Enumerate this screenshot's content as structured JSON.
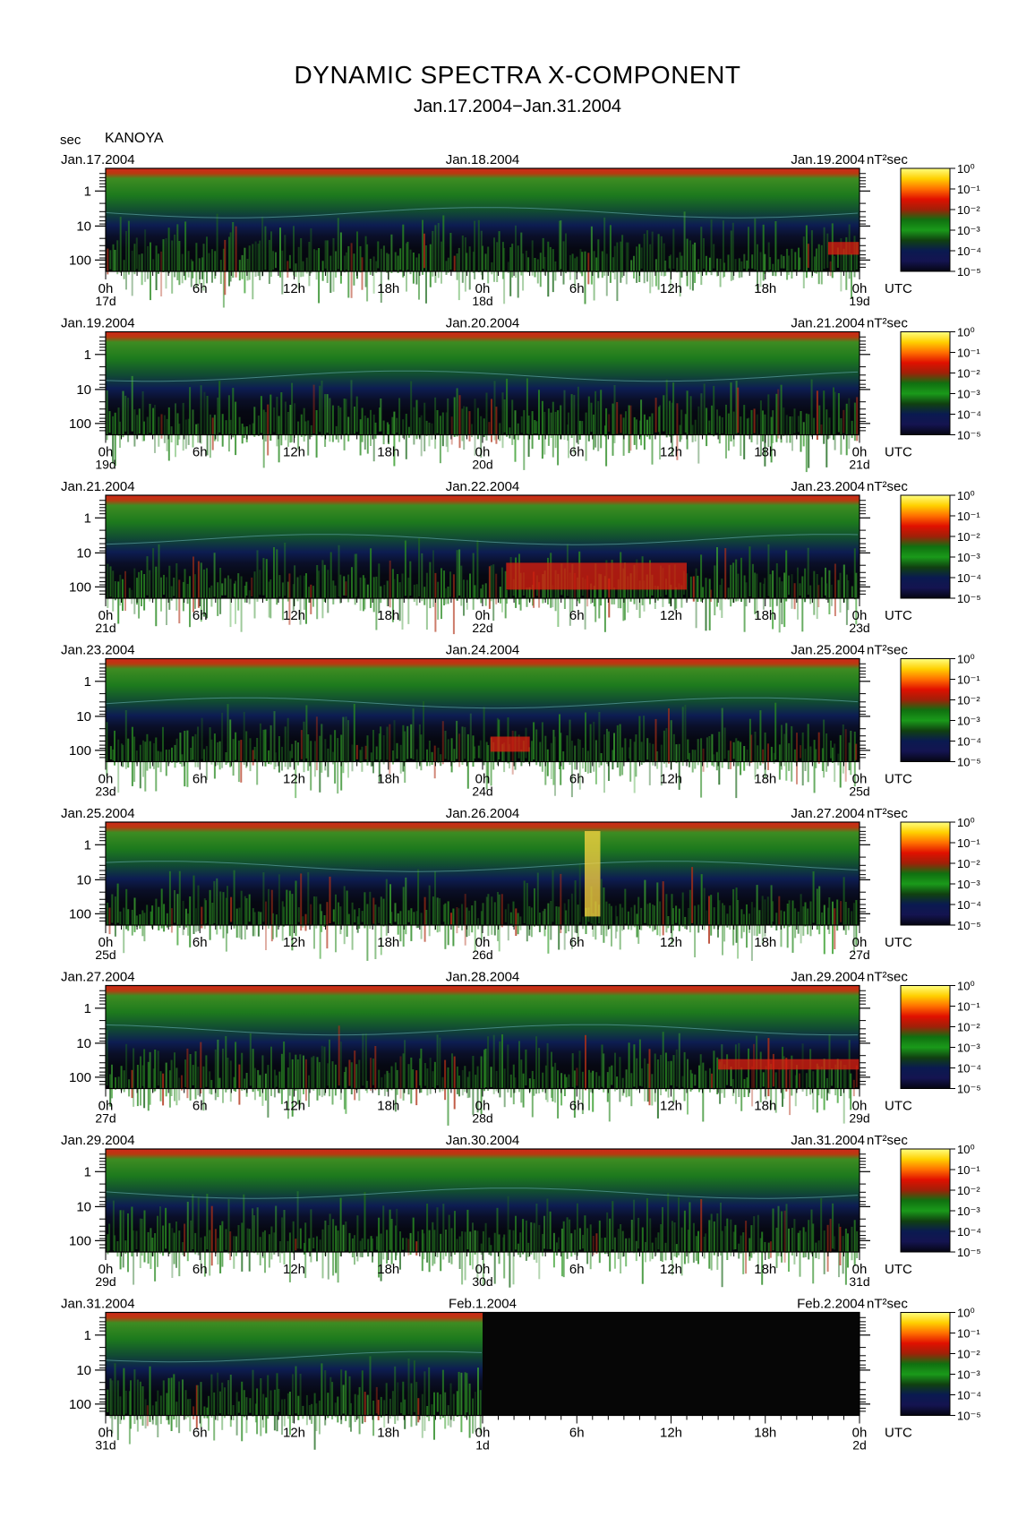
{
  "header": {
    "title": "DYNAMIC SPECTRA X-COMPONENT",
    "subtitle": "Jan.17.2004−Jan.31.2004",
    "unit_label": "sec",
    "station": "KANOYA"
  },
  "chart_data": {
    "type": "heatmap",
    "title": "DYNAMIC SPECTRA X-COMPONENT",
    "subtitle": "Jan.17.2004−Jan.31.2004",
    "station": "KANOYA",
    "ylabel": "sec",
    "y_scale": "log",
    "y_ticks": [
      "1",
      "10",
      "100"
    ],
    "x_unit": "UTC",
    "x_hour_ticks": [
      "0h",
      "6h",
      "12h",
      "18h",
      "0h",
      "6h",
      "12h",
      "18h",
      "0h"
    ],
    "colorbar": {
      "unit": "nT²sec",
      "ticks": [
        "10⁰",
        "10⁻¹",
        "10⁻²",
        "10⁻³",
        "10⁻⁴",
        "10⁻⁵"
      ],
      "colors": [
        "#ffff80",
        "#ffd000",
        "#ff7000",
        "#e01000",
        "#a02008",
        "#107010",
        "#1a9a1a",
        "#104010",
        "#0a1a50",
        "#141450",
        "#050512"
      ]
    },
    "panels": [
      {
        "date_left": "Jan.17.2004",
        "date_mid": "Jan.18.2004",
        "date_right": "Jan.19.2004",
        "day_left": "17d",
        "day_mid": "18d",
        "day_right": "19d",
        "data_gap_from_hour": null
      },
      {
        "date_left": "Jan.19.2004",
        "date_mid": "Jan.20.2004",
        "date_right": "Jan.21.2004",
        "day_left": "19d",
        "day_mid": "20d",
        "day_right": "21d",
        "data_gap_from_hour": null
      },
      {
        "date_left": "Jan.21.2004",
        "date_mid": "Jan.22.2004",
        "date_right": "Jan.23.2004",
        "day_left": "21d",
        "day_mid": "22d",
        "day_right": "23d",
        "data_gap_from_hour": null
      },
      {
        "date_left": "Jan.23.2004",
        "date_mid": "Jan.24.2004",
        "date_right": "Jan.25.2004",
        "day_left": "23d",
        "day_mid": "24d",
        "day_right": "25d",
        "data_gap_from_hour": null
      },
      {
        "date_left": "Jan.25.2004",
        "date_mid": "Jan.26.2004",
        "date_right": "Jan.27.2004",
        "day_left": "25d",
        "day_mid": "26d",
        "day_right": "27d",
        "data_gap_from_hour": null
      },
      {
        "date_left": "Jan.27.2004",
        "date_mid": "Jan.28.2004",
        "date_right": "Jan.29.2004",
        "day_left": "27d",
        "day_mid": "28d",
        "day_right": "29d",
        "data_gap_from_hour": null
      },
      {
        "date_left": "Jan.29.2004",
        "date_mid": "Jan.30.2004",
        "date_right": "Jan.31.2004",
        "day_left": "29d",
        "day_mid": "30d",
        "day_right": "31d",
        "data_gap_from_hour": null
      },
      {
        "date_left": "Jan.31.2004",
        "date_mid": "Feb.1.2004",
        "date_right": "Feb.2.2004",
        "day_left": "31d",
        "day_mid": "1d",
        "day_right": "2d",
        "data_gap_from_hour": 24
      }
    ],
    "features": [
      {
        "panel": 0,
        "hours": [
          46,
          48
        ],
        "period_sec": [
          30,
          70
        ],
        "level": "high"
      },
      {
        "panel": 2,
        "hours": [
          25.5,
          37
        ],
        "period_sec": [
          20,
          120
        ],
        "level": "high"
      },
      {
        "panel": 3,
        "hours": [
          24.5,
          27
        ],
        "period_sec": [
          40,
          110
        ],
        "level": "high"
      },
      {
        "panel": 4,
        "hours": [
          30.5,
          31.5
        ],
        "period_sec": [
          0.4,
          120
        ],
        "level": "very high"
      },
      {
        "panel": 5,
        "hours": [
          39,
          48
        ],
        "period_sec": [
          30,
          60
        ],
        "level": "high"
      }
    ]
  }
}
